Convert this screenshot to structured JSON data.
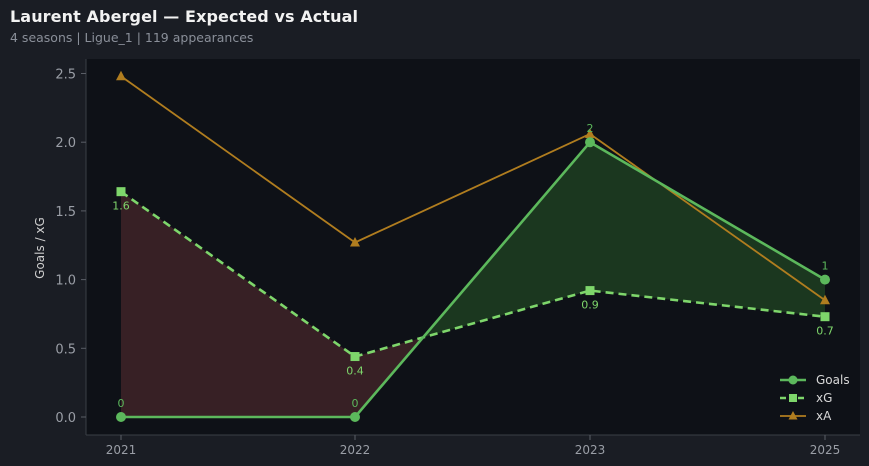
{
  "title": "Laurent Abergel — Expected vs Actual",
  "subtitle": "4 seasons | Ligue_1 | 119 appearances",
  "chart_data": {
    "type": "line",
    "categories": [
      "2021",
      "2022",
      "2023",
      "2025"
    ],
    "ylabel": "Goals / xG",
    "xlabel": "",
    "ylim": [
      -0.1,
      2.6
    ],
    "yticks": [
      "0.0",
      "0.5",
      "1.0",
      "1.5",
      "2.0",
      "2.5"
    ],
    "grid": false,
    "legend_position": "bottom-right",
    "series": [
      {
        "name": "Goals",
        "values": [
          0,
          0,
          2,
          1
        ],
        "labels": [
          "0",
          "0",
          "2",
          "1"
        ],
        "color": "#5cb85c",
        "marker": "circle",
        "dash": "solid"
      },
      {
        "name": "xG",
        "values": [
          1.64,
          0.44,
          0.92,
          0.73
        ],
        "labels": [
          "1.6",
          "0.4",
          "0.9",
          "0.7"
        ],
        "color": "#7ed66b",
        "marker": "square",
        "dash": "dashed"
      },
      {
        "name": "xA",
        "values": [
          2.48,
          1.27,
          2.06,
          0.85
        ],
        "labels": [],
        "color": "#b07d1f",
        "marker": "triangle",
        "dash": "solid"
      }
    ],
    "fill_colors": {
      "under": "#3a2226",
      "over": "#1c3a20"
    }
  }
}
